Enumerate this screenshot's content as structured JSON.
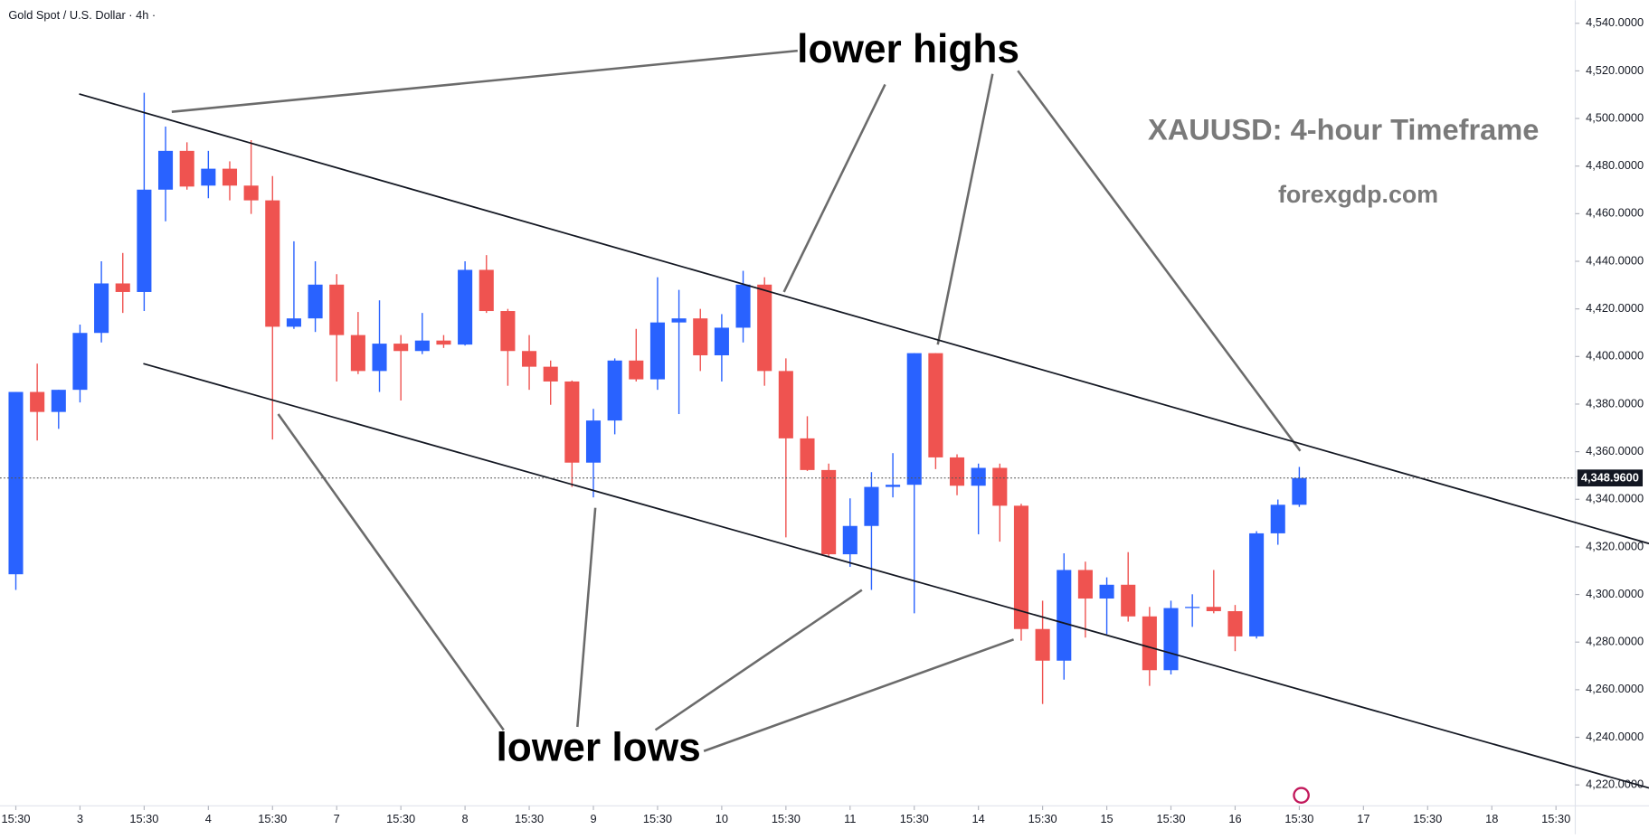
{
  "chart_data": {
    "type": "candlestick",
    "title": "Gold Spot / U.S. Dollar · 4h ·",
    "annotations": {
      "highs": "lower highs",
      "lows": "lower lows",
      "heading": "XAUUSD: 4-hour Timeframe",
      "source": "forexgdp.com"
    },
    "up_color": "#2962ff",
    "down_color": "#ef5350",
    "open": [
      4308.5,
      4385.1,
      4376.7,
      4386.0,
      4409.9,
      4430.7,
      4427.1,
      4470.1,
      4486.4,
      4471.8,
      4478.9,
      4471.8,
      4465.6,
      4412.5,
      4416.0,
      4430.2,
      4409.0,
      4393.9,
      4405.4,
      4402.3,
      4406.7,
      4405.0,
      4436.4,
      4419.1,
      4402.3,
      4395.7,
      4389.5,
      4355.4,
      4373.1,
      4398.3,
      4390.4,
      4414.3,
      4416.0,
      4400.5,
      4412.1,
      4430.2,
      4393.9,
      4365.6,
      4352.3,
      4316.9,
      4328.8,
      4345.2,
      4346.1,
      4401.4,
      4357.6,
      4345.7,
      4353.2,
      4337.3,
      4285.5,
      4272.2,
      4310.3,
      4298.3,
      4304.1,
      4290.8,
      4268.2,
      4294.3,
      4294.8,
      4293.0,
      4282.4,
      4325.7,
      4337.7
    ],
    "high": [
      4385.1,
      4397.0,
      4386.0,
      4413.4,
      4440.0,
      4443.5,
      4510.8,
      4496.6,
      4490.0,
      4486.4,
      4482.0,
      4490.9,
      4475.8,
      4448.4,
      4440.0,
      4434.6,
      4418.7,
      4423.6,
      4409.0,
      4418.3,
      4409.0,
      4440.0,
      4442.6,
      4420.0,
      4409.0,
      4398.3,
      4389.9,
      4378.0,
      4399.2,
      4411.6,
      4433.3,
      4428.0,
      4420.0,
      4417.8,
      4436.0,
      4433.3,
      4399.2,
      4374.9,
      4355.0,
      4340.4,
      4351.4,
      4359.4,
      4401.4,
      4401.4,
      4358.9,
      4355.0,
      4355.0,
      4338.1,
      4297.4,
      4317.3,
      4313.8,
      4307.2,
      4317.8,
      4294.8,
      4297.4,
      4300.1,
      4310.3,
      4295.6,
      4326.6,
      4339.9,
      4353.6
    ],
    "low": [
      4301.9,
      4364.7,
      4369.6,
      4380.7,
      4405.9,
      4418.3,
      4419.1,
      4456.8,
      4470.1,
      4466.5,
      4465.6,
      4459.9,
      4365.1,
      4411.6,
      4410.3,
      4389.5,
      4392.6,
      4385.1,
      4381.5,
      4401.0,
      4403.6,
      4404.6,
      4418.3,
      4387.7,
      4386.0,
      4379.7,
      4345.2,
      4340.8,
      4367.3,
      4389.5,
      4386.0,
      4375.8,
      4393.9,
      4389.5,
      4405.9,
      4387.7,
      4324.0,
      4351.9,
      4316.0,
      4311.6,
      4301.9,
      4340.8,
      4292.1,
      4352.7,
      4341.7,
      4325.3,
      4322.2,
      4280.6,
      4254.0,
      4264.2,
      4281.9,
      4283.3,
      4288.6,
      4261.6,
      4266.4,
      4286.4,
      4292.1,
      4276.2,
      4281.5,
      4320.9,
      4336.8
    ],
    "close": [
      4385.1,
      4376.7,
      4386.0,
      4409.9,
      4430.7,
      4427.1,
      4470.1,
      4486.4,
      4471.4,
      4478.9,
      4471.8,
      4465.6,
      4412.5,
      4416.0,
      4430.2,
      4409.0,
      4393.9,
      4405.4,
      4402.3,
      4406.7,
      4405.0,
      4436.4,
      4419.1,
      4402.3,
      4395.7,
      4389.5,
      4355.4,
      4373.1,
      4398.3,
      4390.4,
      4414.3,
      4416.0,
      4400.5,
      4412.1,
      4430.2,
      4393.9,
      4365.6,
      4352.3,
      4316.9,
      4328.8,
      4345.2,
      4346.1,
      4401.4,
      4357.6,
      4345.7,
      4353.2,
      4337.3,
      4285.5,
      4272.2,
      4310.3,
      4298.3,
      4304.1,
      4290.8,
      4268.2,
      4294.3,
      4294.8,
      4293.0,
      4282.4,
      4325.7,
      4337.7,
      4348.96
    ],
    "last_price": {
      "value": 4348.96,
      "label": "4,348.9600"
    },
    "trendlines": [
      {
        "x": [
          2.96,
          76.35
        ],
        "y": [
          4510.3,
          4321.4
        ]
      },
      {
        "x": [
          5.96,
          76.35
        ],
        "y": [
          4397.0,
          4218.7
        ]
      }
    ],
    "xlim": [
      -0.74,
      72.9
    ],
    "xticks": [
      {
        "value": 0,
        "label": "15:30"
      },
      {
        "value": 3,
        "label": "3"
      },
      {
        "value": 6,
        "label": "15:30"
      },
      {
        "value": 9,
        "label": "4"
      },
      {
        "value": 12,
        "label": "15:30"
      },
      {
        "value": 15,
        "label": "7"
      },
      {
        "value": 18,
        "label": "15:30"
      },
      {
        "value": 21,
        "label": "8"
      },
      {
        "value": 24,
        "label": "15:30"
      },
      {
        "value": 27,
        "label": "9"
      },
      {
        "value": 30,
        "label": "15:30"
      },
      {
        "value": 33,
        "label": "10"
      },
      {
        "value": 36,
        "label": "15:30"
      },
      {
        "value": 39,
        "label": "11"
      },
      {
        "value": 42,
        "label": "15:30"
      },
      {
        "value": 45,
        "label": "14"
      },
      {
        "value": 48,
        "label": "15:30"
      },
      {
        "value": 51,
        "label": "15"
      },
      {
        "value": 54,
        "label": "15:30"
      },
      {
        "value": 57,
        "label": "16"
      },
      {
        "value": 60,
        "label": "15:30"
      },
      {
        "value": 63,
        "label": "17"
      },
      {
        "value": 66,
        "label": "15:30"
      },
      {
        "value": 69,
        "label": "18"
      },
      {
        "value": 72,
        "label": "15:30"
      }
    ],
    "ylim": [
      4211.2,
      4549.7
    ],
    "yticks": [
      {
        "value": 4220,
        "label": "4,220.0000"
      },
      {
        "value": 4240,
        "label": "4,240.0000"
      },
      {
        "value": 4260,
        "label": "4,260.0000"
      },
      {
        "value": 4280,
        "label": "4,280.0000"
      },
      {
        "value": 4300,
        "label": "4,300.0000"
      },
      {
        "value": 4320,
        "label": "4,320.0000"
      },
      {
        "value": 4340,
        "label": "4,340.0000"
      },
      {
        "value": 4360,
        "label": "4,360.0000"
      },
      {
        "value": 4380,
        "label": "4,380.0000"
      },
      {
        "value": 4400,
        "label": "4,400.0000"
      },
      {
        "value": 4420,
        "label": "4,420.0000"
      },
      {
        "value": 4440,
        "label": "4,440.0000"
      },
      {
        "value": 4460,
        "label": "4,460.0000"
      },
      {
        "value": 4480,
        "label": "4,480.0000"
      },
      {
        "value": 4500,
        "label": "4,500.0000"
      },
      {
        "value": 4520,
        "label": "4,520.0000"
      },
      {
        "value": 4540,
        "label": "4,540.0000"
      }
    ]
  }
}
